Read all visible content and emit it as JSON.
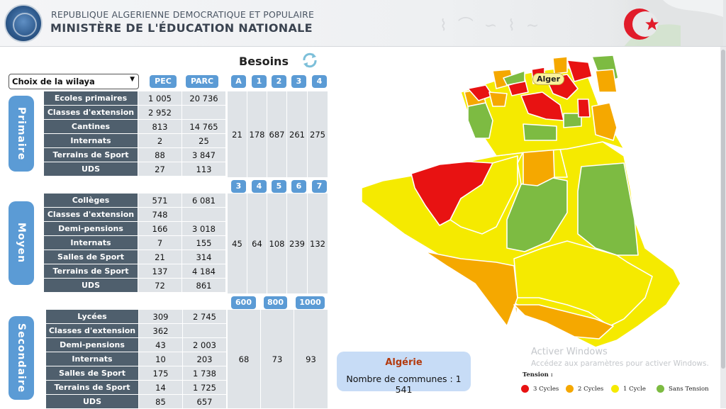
{
  "header": {
    "line1": "REPUBLIQUE ALGERIENNE DEMOCRATIQUE ET POPULAIRE",
    "line2": "MINISTÈRE DE L'ÉDUCATION NATIONALE"
  },
  "toolbar": {
    "title": "Besoins",
    "refresh_icon": "refresh-icon",
    "select_value": "Choix de la wilaya"
  },
  "columns": {
    "pec": "PEC",
    "parc": "PARC"
  },
  "primaire": {
    "label": "Primaire",
    "rows": [
      {
        "label": "Ecoles primaires",
        "pec": "1 005",
        "parc": "20 736"
      },
      {
        "label": "Classes d'extension",
        "pec": "2 952",
        "parc": ""
      },
      {
        "label": "Cantines",
        "pec": "813",
        "parc": "14 765"
      },
      {
        "label": "Internats",
        "pec": "2",
        "parc": "25"
      },
      {
        "label": "Terrains de Sport",
        "pec": "88",
        "parc": "3 847"
      },
      {
        "label": "UDS",
        "pec": "27",
        "parc": "113"
      }
    ],
    "need_headers": [
      "A",
      "1",
      "2",
      "3",
      "4"
    ],
    "need_values": [
      "21",
      "178",
      "687",
      "261",
      "275"
    ]
  },
  "moyen": {
    "label": "Moyen",
    "rows": [
      {
        "label": "Collèges",
        "pec": "571",
        "parc": "6 081"
      },
      {
        "label": "Classes d'extension",
        "pec": "748",
        "parc": ""
      },
      {
        "label": "Demi-pensions",
        "pec": "166",
        "parc": "3 018"
      },
      {
        "label": "Internats",
        "pec": "7",
        "parc": "155"
      },
      {
        "label": "Salles de Sport",
        "pec": "21",
        "parc": "314"
      },
      {
        "label": "Terrains de Sport",
        "pec": "137",
        "parc": "4 184"
      },
      {
        "label": "UDS",
        "pec": "72",
        "parc": "861"
      }
    ],
    "need_headers": [
      "3",
      "4",
      "5",
      "6",
      "7"
    ],
    "need_values": [
      "45",
      "64",
      "108",
      "239",
      "132"
    ]
  },
  "secondaire": {
    "label": "Secondaire",
    "rows": [
      {
        "label": "Lycées",
        "pec": "309",
        "parc": "2 745"
      },
      {
        "label": "Classes d'extension",
        "pec": "362",
        "parc": ""
      },
      {
        "label": "Demi-pensions",
        "pec": "43",
        "parc": "2 003"
      },
      {
        "label": "Internats",
        "pec": "10",
        "parc": "203"
      },
      {
        "label": "Salles de Sport",
        "pec": "175",
        "parc": "1 738"
      },
      {
        "label": "Terrains de Sport",
        "pec": "14",
        "parc": "1 725"
      },
      {
        "label": "UDS",
        "pec": "85",
        "parc": "657"
      }
    ],
    "need_headers": [
      "600",
      "800",
      "1000"
    ],
    "need_values": [
      "68",
      "73",
      "93"
    ]
  },
  "summary": {
    "country": "Algérie",
    "communes": "Nombre de communes : 1 541"
  },
  "map": {
    "capital_label": "Alger",
    "legend_title": "Tension :",
    "legend": [
      {
        "label": "3 Cycles",
        "color": "#e81212"
      },
      {
        "label": "2 Cycles",
        "color": "#f5a800"
      },
      {
        "label": "1 Cycle",
        "color": "#f5ea00"
      },
      {
        "label": "Sans Tension",
        "color": "#7dbb42"
      }
    ]
  },
  "watermark": {
    "line1": "Activer Windows",
    "line2": "Accédez aux paramètres pour activer Windows."
  }
}
